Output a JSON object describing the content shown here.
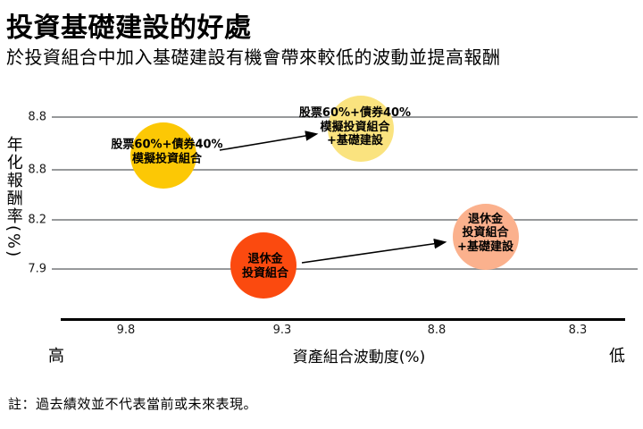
{
  "header": {
    "title": "投資基礎建設的好處",
    "subtitle": "於投資組合中加入基礎建設有機會帶來較低的波動並提高報酬"
  },
  "chart_data": {
    "type": "scatter",
    "title": "投資基礎建設的好處",
    "xlabel": "資產組合波動度(%)",
    "ylabel": "年化報酬率(%)",
    "x_ticks": [
      "9.8",
      "9.3",
      "8.8",
      "8.3"
    ],
    "y_ticks": [
      "8.8",
      "8.8",
      "8.2",
      "7.9"
    ],
    "x_axis_reversed": true,
    "x_direction_labels": {
      "left": "高",
      "right": "低"
    },
    "grid": "horizontal-only",
    "points": [
      {
        "label_lines": [
          "股票60%+債券40%",
          "模擬投資組合"
        ],
        "x": 9.68,
        "y": 8.57,
        "color": "#FCC805"
      },
      {
        "label_lines": [
          "股票60%+債券40%",
          "模擬投資組合",
          "+基礎建設"
        ],
        "x": 9.05,
        "y": 8.73,
        "color": "#FAE37F"
      },
      {
        "label_lines": [
          "退休金",
          "投資組合"
        ],
        "x": 9.36,
        "y": 7.92,
        "color": "#FB4A0F"
      },
      {
        "label_lines": [
          "退休金",
          "投資組合",
          "+基礎建設"
        ],
        "x": 8.65,
        "y": 8.09,
        "color": "#FBB18D"
      }
    ],
    "annotations": [
      {
        "type": "arrow",
        "from_point": 0,
        "to_point": 1
      },
      {
        "type": "arrow",
        "from_point": 2,
        "to_point": 3
      }
    ]
  },
  "footer": {
    "note": "註：過去績效並不代表當前或未來表現。"
  }
}
